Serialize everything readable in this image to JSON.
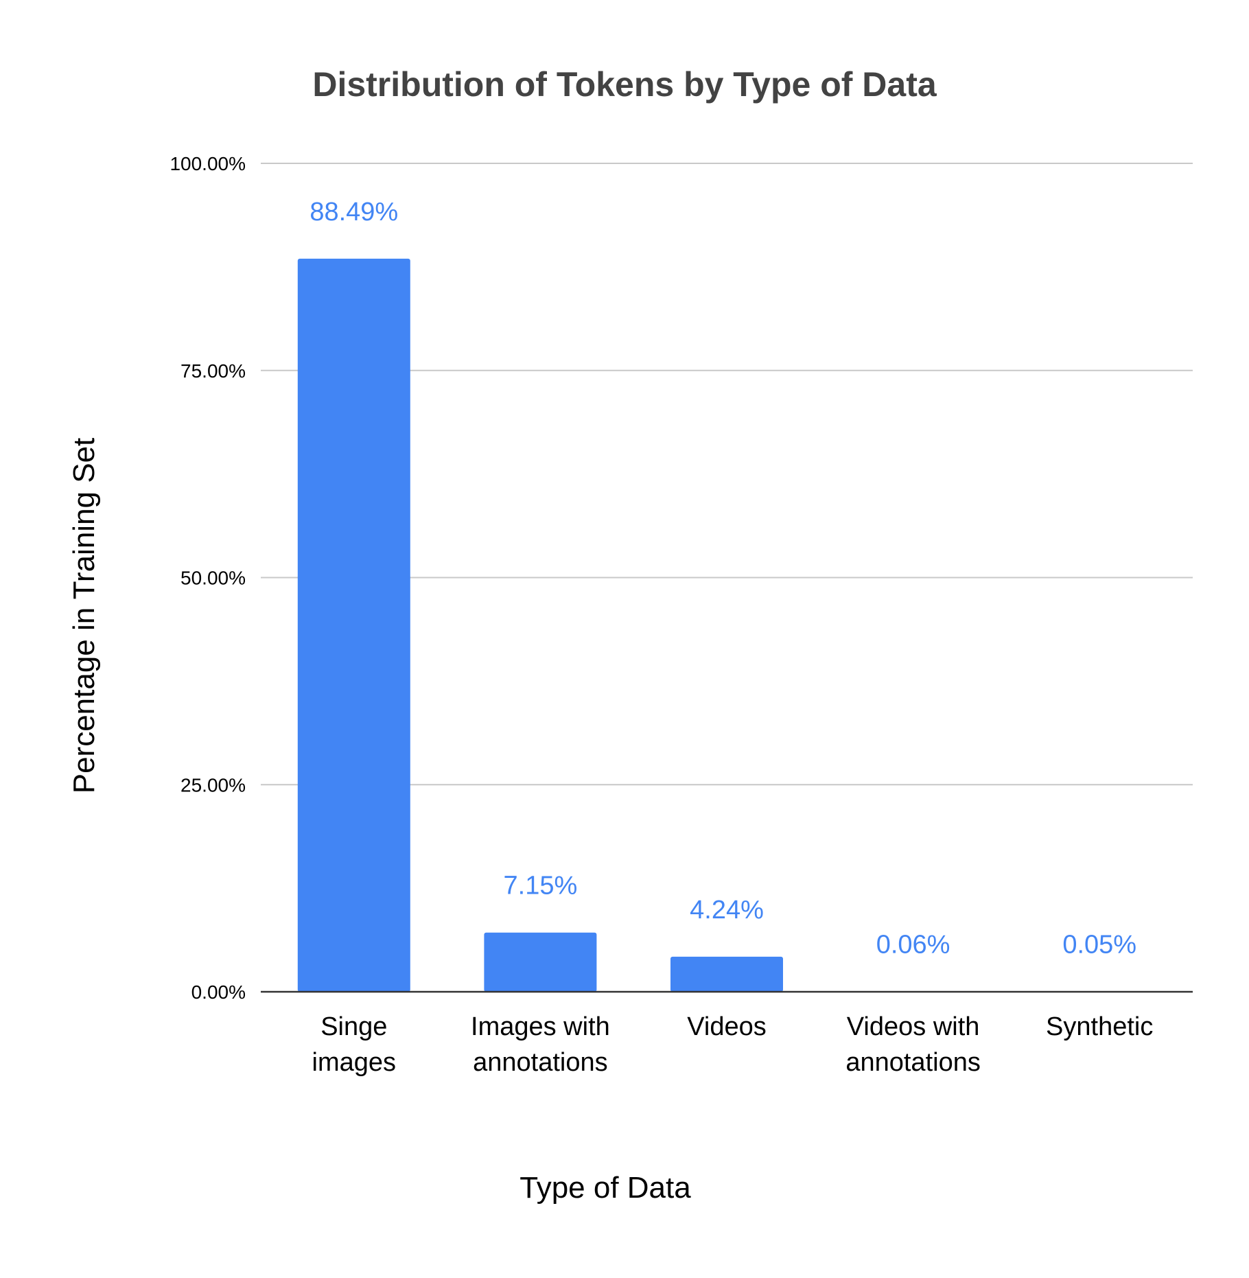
{
  "chart_data": {
    "type": "bar",
    "title": "Distribution of Tokens by Type of Data",
    "xlabel": "Type of Data",
    "ylabel": "Percentage in Training Set",
    "categories": [
      [
        "Singe",
        "images"
      ],
      [
        "Images with",
        "annotations"
      ],
      [
        "Videos"
      ],
      [
        "Videos with",
        "annotations"
      ],
      [
        "Synthetic"
      ]
    ],
    "values": [
      88.49,
      7.15,
      4.24,
      0.06,
      0.05
    ],
    "data_labels": [
      "88.49%",
      "7.15%",
      "4.24%",
      "0.06%",
      "0.05%"
    ],
    "ylim": [
      0,
      100
    ],
    "yticks": [
      0,
      25,
      50,
      75,
      100
    ],
    "ytick_labels": [
      "0.00%",
      "25.00%",
      "50.00%",
      "75.00%",
      "100.00%"
    ],
    "grid": true,
    "legend": "none",
    "colors": {
      "bar": "#4285f4",
      "data_label": "#4285f4",
      "grid": "#c8c8c8",
      "axis": "#333333",
      "title": "#434343"
    }
  }
}
